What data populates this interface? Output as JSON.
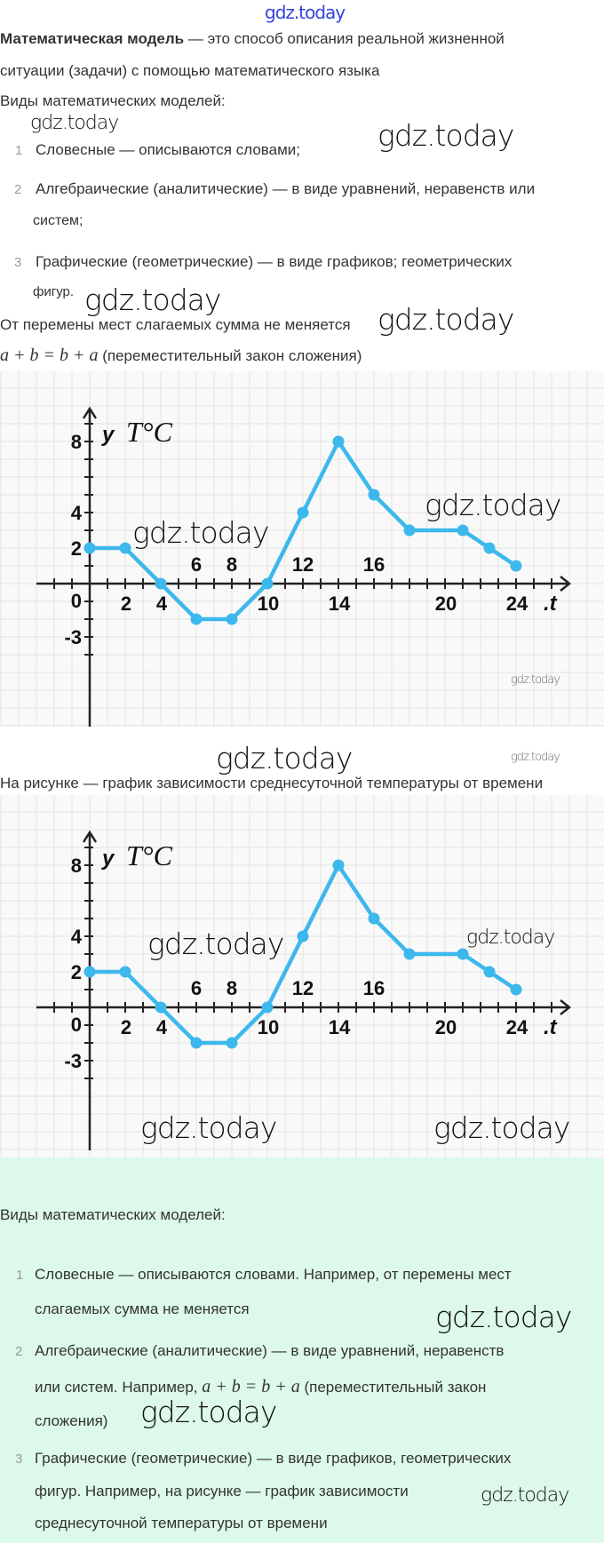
{
  "top_watermark": "gdz.today",
  "intro": {
    "term": "Математическая модель",
    "definition_line1": " — это способ описания реальной жизненной",
    "definition_line2": "ситуации (задачи) с помощью математического языка",
    "types_heading": "Виды математических моделей:",
    "items": [
      {
        "num": "1",
        "line1": "Словесные — описываются словами;"
      },
      {
        "num": "2",
        "line1": "Алгебраические (аналитические) — в виде уравнений, неравенств или",
        "line2": "систем;"
      },
      {
        "num": "3",
        "line1": "Графические (геометрические) — в виде графиков; геометрических",
        "line2": "фигур."
      }
    ],
    "commutative_text": "От перемены мест слагаемых сумма не меняется",
    "formula": "a + b = b + a",
    "formula_note": " (переместительный закон сложения)"
  },
  "caption": "На рисунке — график зависимости среднесуточной температуры от времени",
  "watermark": "gdz.today",
  "summary": {
    "heading": "Виды математических моделей:",
    "items": [
      {
        "num": "1",
        "line1": "Словесные — описываются словами. Например, от перемены мест",
        "line2": "слагаемых сумма не меняется"
      },
      {
        "num": "2",
        "line1": "Алгебраические (аналитические) — в виде уравнений, неравенств",
        "line2_pre": "или систем. Например, ",
        "formula": "a + b = b + a",
        "line2_post": " (переместительный закон",
        "line3": "сложения)"
      },
      {
        "num": "3",
        "line1": "Графические (геометрические) — в виде графиков, геометрических",
        "line2": "фигур. Например, на рисунке — график зависимости",
        "line3": "среднесуточной температуры от времени"
      }
    ]
  },
  "colors": {
    "line": "#3db8ec",
    "axis": "#222222",
    "grid": "#e2e2e2",
    "summary_bg": "#ddf9e9",
    "top_watermark": "#3344dd"
  },
  "chart_data": [
    {
      "type": "line",
      "ylabel": "y T°C",
      "xlabel": "t",
      "x": [
        0,
        2,
        4,
        6,
        8,
        10,
        12,
        14,
        16,
        18,
        21,
        22.5,
        24
      ],
      "y": [
        2,
        2,
        0,
        -2,
        -2,
        0,
        4,
        8,
        5,
        3,
        3,
        2,
        1
      ],
      "x_tick_labels_below": [
        "2",
        "4",
        "10",
        "14",
        "20",
        "24"
      ],
      "x_tick_labels_above": [
        "6",
        "8",
        "12",
        "16"
      ],
      "y_tick_labels": [
        "8",
        "4",
        "2",
        "0",
        "-3"
      ],
      "xlim": [
        -3,
        27
      ],
      "ylim": [
        -8,
        10
      ],
      "grid": true
    },
    {
      "type": "line",
      "ylabel": "y T°C",
      "xlabel": "t",
      "x": [
        0,
        2,
        4,
        6,
        8,
        10,
        12,
        14,
        16,
        18,
        21,
        22.5,
        24
      ],
      "y": [
        2,
        2,
        0,
        -2,
        -2,
        0,
        4,
        8,
        5,
        3,
        3,
        2,
        1
      ],
      "x_tick_labels_below": [
        "2",
        "4",
        "10",
        "14",
        "20",
        "24"
      ],
      "x_tick_labels_above": [
        "6",
        "8",
        "12",
        "16"
      ],
      "y_tick_labels": [
        "8",
        "4",
        "2",
        "0",
        "-3"
      ],
      "xlim": [
        -3,
        27
      ],
      "ylim": [
        -8,
        10
      ],
      "grid": true
    }
  ]
}
